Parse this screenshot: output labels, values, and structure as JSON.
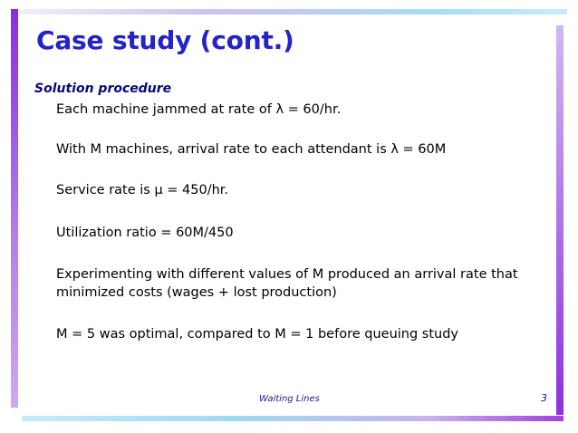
{
  "slide": {
    "title": "Case study (cont.)",
    "subheading": "Solution procedure",
    "bullets": [
      "Each machine jammed at rate of λ = 60/hr.",
      "With M machines, arrival rate to each attendant is λ = 60M",
      "Service rate is μ = 450/hr.",
      "Utilization ratio = 60M/450",
      "Experimenting with different values of M produced an arrival rate that minimized costs (wages + lost production)",
      "M = 5 was optimal, compared to M = 1 before queuing study"
    ],
    "footer": {
      "center": "Waiting Lines",
      "page_number": "3"
    }
  }
}
